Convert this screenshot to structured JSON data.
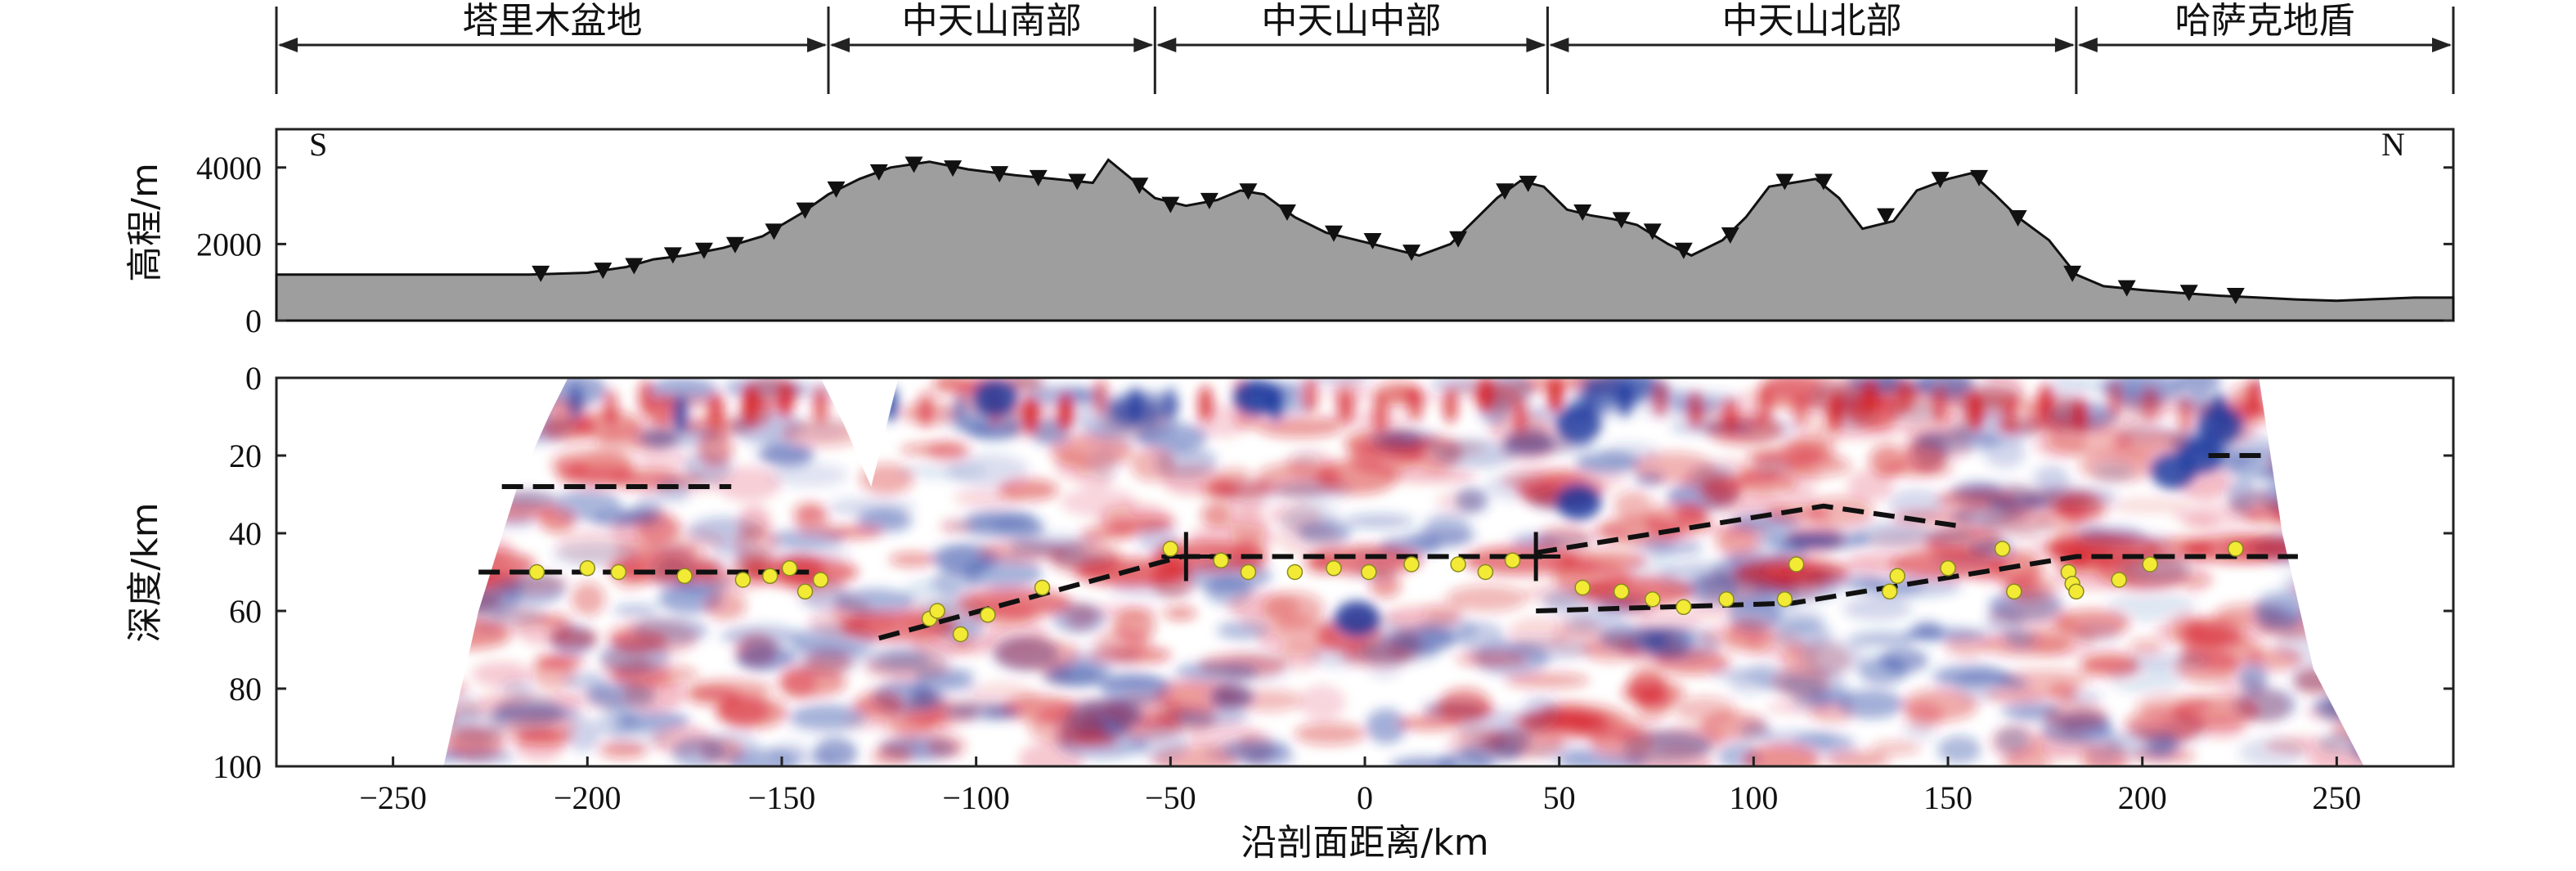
{
  "regions": [
    {
      "label": "塔里木盆地",
      "from": -280,
      "to": -138
    },
    {
      "label": "中天山南部",
      "from": -138,
      "to": -54
    },
    {
      "label": "中天山中部",
      "from": -54,
      "to": 47
    },
    {
      "label": "中天山北部",
      "from": 47,
      "to": 183
    },
    {
      "label": "哈萨克地盾",
      "from": 183,
      "to": 280
    }
  ],
  "topo": {
    "ylabel": "高程/m",
    "yticks": [
      0,
      2000,
      4000
    ],
    "ylim": [
      0,
      5000
    ],
    "south_label": "S",
    "north_label": "N",
    "fill_color": "#9e9e9e",
    "profile": [
      [
        -280,
        1200
      ],
      [
        -240,
        1200
      ],
      [
        -215,
        1200
      ],
      [
        -200,
        1250
      ],
      [
        -190,
        1400
      ],
      [
        -183,
        1600
      ],
      [
        -175,
        1700
      ],
      [
        -165,
        1900
      ],
      [
        -155,
        2200
      ],
      [
        -145,
        2800
      ],
      [
        -138,
        3300
      ],
      [
        -130,
        3700
      ],
      [
        -122,
        4000
      ],
      [
        -112,
        4150
      ],
      [
        -102,
        3950
      ],
      [
        -90,
        3800
      ],
      [
        -80,
        3700
      ],
      [
        -70,
        3600
      ],
      [
        -66,
        4200
      ],
      [
        -60,
        3700
      ],
      [
        -54,
        3200
      ],
      [
        -46,
        3000
      ],
      [
        -38,
        3150
      ],
      [
        -32,
        3400
      ],
      [
        -26,
        3300
      ],
      [
        -18,
        2700
      ],
      [
        -10,
        2300
      ],
      [
        -2,
        2100
      ],
      [
        6,
        1900
      ],
      [
        14,
        1700
      ],
      [
        22,
        2000
      ],
      [
        28,
        2600
      ],
      [
        34,
        3200
      ],
      [
        40,
        3650
      ],
      [
        46,
        3500
      ],
      [
        52,
        2900
      ],
      [
        58,
        2750
      ],
      [
        64,
        2650
      ],
      [
        70,
        2500
      ],
      [
        78,
        2000
      ],
      [
        84,
        1700
      ],
      [
        92,
        2100
      ],
      [
        98,
        2700
      ],
      [
        104,
        3500
      ],
      [
        110,
        3600
      ],
      [
        116,
        3700
      ],
      [
        122,
        3200
      ],
      [
        128,
        2400
      ],
      [
        136,
        2600
      ],
      [
        142,
        3400
      ],
      [
        150,
        3700
      ],
      [
        156,
        3850
      ],
      [
        162,
        3300
      ],
      [
        168,
        2700
      ],
      [
        176,
        2100
      ],
      [
        183,
        1200
      ],
      [
        190,
        900
      ],
      [
        200,
        800
      ],
      [
        210,
        720
      ],
      [
        220,
        650
      ],
      [
        230,
        600
      ],
      [
        240,
        550
      ],
      [
        250,
        520
      ],
      [
        260,
        560
      ],
      [
        270,
        600
      ],
      [
        280,
        600
      ]
    ],
    "stations": [
      [
        -212,
        1200
      ],
      [
        -196,
        1280
      ],
      [
        -188,
        1400
      ],
      [
        -178,
        1680
      ],
      [
        -170,
        1800
      ],
      [
        -162,
        1950
      ],
      [
        -152,
        2300
      ],
      [
        -144,
        2850
      ],
      [
        -136,
        3400
      ],
      [
        -125,
        3850
      ],
      [
        -116,
        4050
      ],
      [
        -106,
        3950
      ],
      [
        -94,
        3800
      ],
      [
        -84,
        3700
      ],
      [
        -74,
        3600
      ],
      [
        -58,
        3500
      ],
      [
        -50,
        3000
      ],
      [
        -40,
        3100
      ],
      [
        -30,
        3350
      ],
      [
        -20,
        2800
      ],
      [
        -8,
        2250
      ],
      [
        2,
        2050
      ],
      [
        12,
        1750
      ],
      [
        24,
        2100
      ],
      [
        36,
        3350
      ],
      [
        42,
        3550
      ],
      [
        56,
        2800
      ],
      [
        66,
        2600
      ],
      [
        74,
        2300
      ],
      [
        82,
        1800
      ],
      [
        94,
        2200
      ],
      [
        108,
        3600
      ],
      [
        118,
        3600
      ],
      [
        134,
        2700
      ],
      [
        148,
        3650
      ],
      [
        158,
        3700
      ],
      [
        168,
        2650
      ],
      [
        182,
        1200
      ],
      [
        196,
        820
      ],
      [
        212,
        700
      ],
      [
        224,
        620
      ]
    ]
  },
  "section": {
    "ylabel": "深度/km",
    "yticks": [
      0,
      20,
      40,
      60,
      80,
      100
    ],
    "ylim": [
      0,
      100
    ],
    "xlabel": "沿剖面距离/km",
    "xticks": [
      -250,
      -200,
      -150,
      -100,
      -50,
      0,
      50,
      100,
      150,
      200,
      250
    ],
    "xlim": [
      -280,
      280
    ],
    "dashed_lines": [
      [
        [
          -222,
          28
        ],
        [
          -163,
          28
        ]
      ],
      [
        [
          -228,
          50
        ],
        [
          -143,
          50
        ]
      ],
      [
        [
          -125,
          67
        ],
        [
          -47,
          46
        ],
        [
          46,
          46
        ]
      ],
      [
        [
          44,
          45
        ],
        [
          118,
          33
        ],
        [
          152,
          38
        ]
      ],
      [
        [
          44,
          60
        ],
        [
          110,
          58
        ],
        [
          183,
          46
        ],
        [
          240,
          46
        ]
      ],
      [
        [
          217,
          20
        ],
        [
          231,
          20
        ]
      ]
    ],
    "crosses": [
      [
        -46,
        46
      ],
      [
        44,
        46
      ]
    ],
    "dots": [
      [
        -213,
        50
      ],
      [
        -200,
        49
      ],
      [
        -192,
        50
      ],
      [
        -175,
        51
      ],
      [
        -160,
        52
      ],
      [
        -153,
        51
      ],
      [
        -148,
        49
      ],
      [
        -140,
        52
      ],
      [
        -144,
        55
      ],
      [
        -112,
        62
      ],
      [
        -110,
        60
      ],
      [
        -104,
        66
      ],
      [
        -97,
        61
      ],
      [
        -83,
        54
      ],
      [
        -50,
        44
      ],
      [
        -37,
        47
      ],
      [
        -30,
        50
      ],
      [
        -18,
        50
      ],
      [
        -8,
        49
      ],
      [
        1,
        50
      ],
      [
        12,
        48
      ],
      [
        24,
        48
      ],
      [
        31,
        50
      ],
      [
        38,
        47
      ],
      [
        56,
        54
      ],
      [
        66,
        55
      ],
      [
        74,
        57
      ],
      [
        82,
        59
      ],
      [
        93,
        57
      ],
      [
        108,
        57
      ],
      [
        111,
        48
      ],
      [
        135,
        55
      ],
      [
        137,
        51
      ],
      [
        150,
        49
      ],
      [
        164,
        44
      ],
      [
        167,
        55
      ],
      [
        181,
        50
      ],
      [
        182,
        53
      ],
      [
        183,
        55
      ],
      [
        194,
        52
      ],
      [
        202,
        48
      ],
      [
        224,
        44
      ]
    ],
    "dot_color": "#f2ea35",
    "positive_color": "#d4141c",
    "negative_color": "#1f3a9e"
  }
}
